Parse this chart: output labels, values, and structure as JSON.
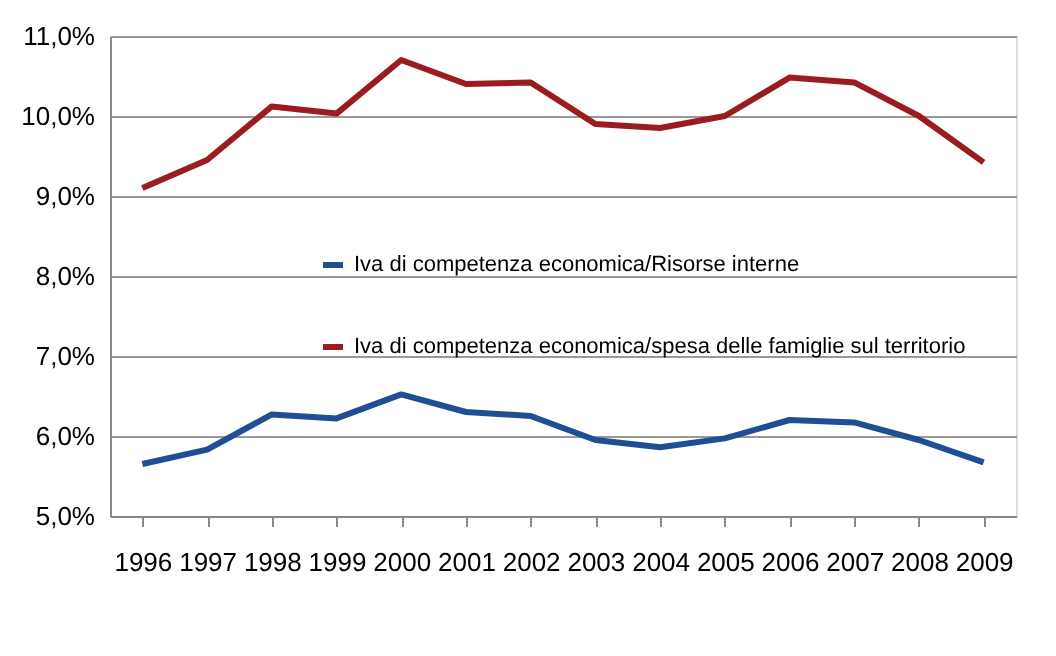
{
  "chart_data": {
    "type": "line",
    "categories": [
      "1996",
      "1997",
      "1998",
      "1999",
      "2000",
      "2001",
      "2002",
      "2003",
      "2004",
      "2005",
      "2006",
      "2007",
      "2008",
      "2009"
    ],
    "series": [
      {
        "name": "Iva di competenza economica/Risorse interne",
        "color": "#1f4e95",
        "values": [
          5.65,
          5.83,
          6.27,
          6.22,
          6.52,
          6.3,
          6.25,
          5.95,
          5.86,
          5.97,
          6.2,
          6.17,
          5.95,
          5.67
        ]
      },
      {
        "name": "Iva di competenza economica/spesa delle famiglie sul territorio",
        "color": "#9b1c1f",
        "values": [
          9.1,
          9.45,
          10.12,
          10.03,
          10.7,
          10.4,
          10.42,
          9.9,
          9.85,
          10.0,
          10.48,
          10.42,
          10.0,
          9.42
        ]
      }
    ],
    "ylim": [
      5,
      11
    ],
    "yticks": [
      {
        "value": 5,
        "label": "5,0%"
      },
      {
        "value": 6,
        "label": "6,0%"
      },
      {
        "value": 7,
        "label": "7,0%"
      },
      {
        "value": 8,
        "label": "8,0%"
      },
      {
        "value": 9,
        "label": "9,0%"
      },
      {
        "value": 10,
        "label": "10,0%"
      },
      {
        "value": 11,
        "label": "11,0%"
      }
    ],
    "grid": "y",
    "legend": "right",
    "marker": "none",
    "line_style": "solid"
  }
}
